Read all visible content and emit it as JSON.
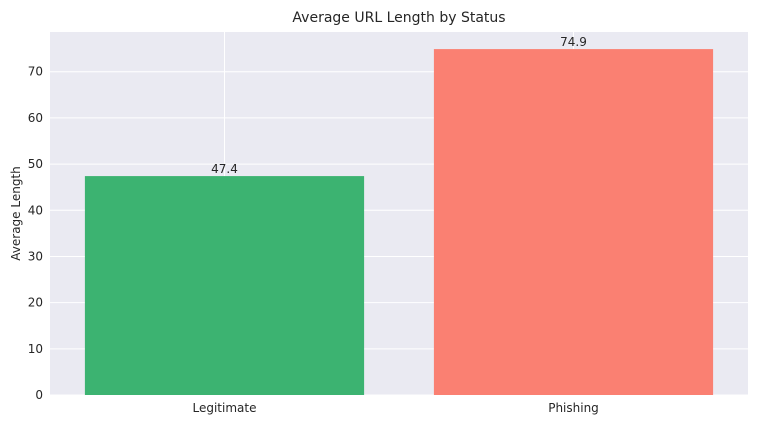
{
  "chart_data": {
    "type": "bar",
    "title": "Average URL Length by Status",
    "xlabel": "",
    "ylabel": "Average Length",
    "categories": [
      "Legitimate",
      "Phishing"
    ],
    "values": [
      47.4,
      74.9
    ],
    "value_labels": [
      "47.4",
      "74.9"
    ],
    "colors": [
      "#3cb371",
      "#fa8072"
    ],
    "ylim": [
      0,
      78.6
    ],
    "yticks": [
      0,
      10,
      20,
      30,
      40,
      50,
      60,
      70
    ],
    "grid": true,
    "legend": "none"
  }
}
